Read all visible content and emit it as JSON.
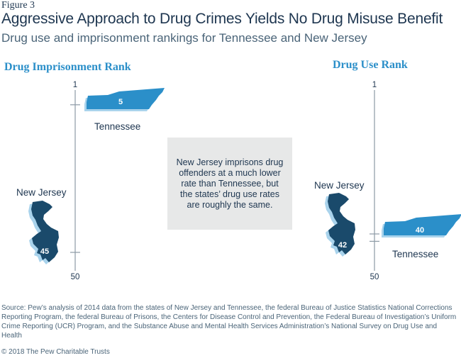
{
  "figure_label": "Figure 3",
  "title": "Aggressive Approach to Drug Crimes Yields No Drug Misuse Benefit",
  "subtitle": "Drug use and imprisonment rankings for Tennessee and New Jersey",
  "callout": "New Jersey imprisons drug offenders at a much lower rate than Tennessee, but the states’ drug use rates are roughly the same.",
  "source": "Source: Pew’s analysis of 2014 data from the states of New Jersey and Tennessee, the federal Bureau of Justice Statistics National Corrections Reporting Program, the federal Bureau of Prisons, the Centers for Disease Control and Prevention, the Federal Bureau of Investigation’s Uniform Crime Reporting (UCR) Program, and the Substance Abuse and Mental Health Services Administration’s National Survey on Drug Use and Health",
  "copyright": "© 2018 The Pew Charitable Trusts",
  "colors": {
    "tennessee": "#2b8fc9",
    "tennessee_shadow": "#a9d3ec",
    "new_jersey": "#1a4a6b",
    "new_jersey_shadow": "#a9d3ec",
    "axis": "#8c9aa5",
    "panel_label": "#2b8fc9"
  },
  "chart_data": [
    {
      "type": "rank-scale",
      "title": "Drug Imprisonment Rank",
      "axis_range": [
        1,
        50
      ],
      "tick_labels": [
        "1",
        "50"
      ],
      "states": [
        {
          "name": "Tennessee",
          "rank": 5,
          "icon": "tennessee-map-icon"
        },
        {
          "name": "New Jersey",
          "rank": 45,
          "icon": "new-jersey-map-icon"
        }
      ]
    },
    {
      "type": "rank-scale",
      "title": "Drug Use Rank",
      "axis_range": [
        1,
        50
      ],
      "tick_labels": [
        "1",
        "50"
      ],
      "states": [
        {
          "name": "New Jersey",
          "rank": 42,
          "icon": "new-jersey-map-icon"
        },
        {
          "name": "Tennessee",
          "rank": 40,
          "icon": "tennessee-map-icon"
        }
      ]
    }
  ]
}
